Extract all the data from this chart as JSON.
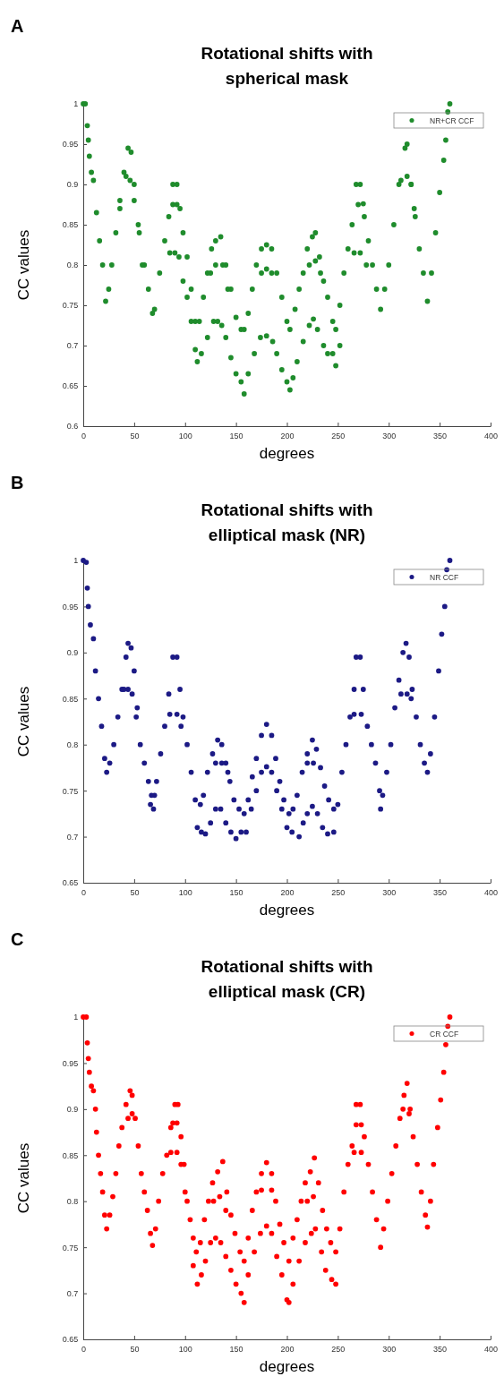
{
  "chart_data": [
    {
      "type": "scatter",
      "title": "Rotational shifts with spherical mask",
      "xlabel": "degrees",
      "ylabel": "CC values",
      "annotations": [
        "A"
      ],
      "xlim": [
        0,
        400
      ],
      "xticks": [
        0,
        50,
        100,
        150,
        200,
        250,
        300,
        350,
        400
      ],
      "ylim": [
        0.6,
        1
      ],
      "yticks": [
        0.6,
        0.65,
        0.7,
        0.75,
        0.8,
        0.85,
        0.9,
        0.95,
        1
      ],
      "legend": "top right",
      "marker": "circle",
      "grid": false,
      "x": [
        0,
        2,
        4,
        5,
        6,
        8,
        10,
        13,
        16,
        19,
        22,
        25,
        28,
        32,
        36,
        40,
        44,
        47,
        50,
        55,
        60,
        64,
        68,
        70,
        75,
        80,
        84,
        88,
        92,
        95,
        98,
        102,
        106,
        110,
        114,
        118,
        122,
        126,
        130,
        135,
        140,
        145,
        150,
        155,
        158,
        162,
        166,
        170,
        175,
        180,
        185,
        190,
        195,
        200,
        203,
        208,
        212,
        216,
        220,
        225,
        228,
        232,
        236,
        240,
        245,
        248,
        252,
        256,
        260,
        264,
        268,
        272,
        276,
        280,
        284,
        288,
        292,
        296,
        300,
        305,
        310,
        316,
        318,
        322,
        326,
        330,
        334,
        338,
        342,
        346,
        350,
        354,
        356,
        358,
        360,
        36,
        42,
        46,
        50,
        54,
        58,
        85,
        90,
        94,
        98,
        102,
        106,
        110,
        112,
        116,
        122,
        128,
        132,
        136,
        140,
        145,
        150,
        155,
        158,
        162,
        168,
        174,
        180,
        186,
        190,
        195,
        200,
        203,
        206,
        210,
        216,
        222,
        226,
        230,
        236,
        240,
        245,
        248,
        252,
        125,
        130,
        137,
        142,
        175,
        180,
        185,
        222,
        228,
        233,
        270,
        275,
        88,
        92,
        266,
        272,
        278,
        312,
        318,
        322,
        325
      ],
      "series": [
        {
          "name": "NR+CR CCF",
          "color": "#1f8c2c",
          "values": [
            1.0,
            1.0,
            0.973,
            0.955,
            0.935,
            0.915,
            0.905,
            0.865,
            0.83,
            0.8,
            0.755,
            0.77,
            0.8,
            0.84,
            0.88,
            0.915,
            0.945,
            0.94,
            0.9,
            0.84,
            0.8,
            0.77,
            0.74,
            0.745,
            0.79,
            0.83,
            0.86,
            0.9,
            0.9,
            0.87,
            0.84,
            0.81,
            0.77,
            0.73,
            0.73,
            0.76,
            0.79,
            0.82,
            0.83,
            0.835,
            0.8,
            0.77,
            0.735,
            0.72,
            0.72,
            0.74,
            0.77,
            0.8,
            0.82,
            0.825,
            0.82,
            0.79,
            0.76,
            0.73,
            0.72,
            0.745,
            0.77,
            0.79,
            0.82,
            0.835,
            0.84,
            0.81,
            0.78,
            0.76,
            0.73,
            0.72,
            0.75,
            0.79,
            0.82,
            0.85,
            0.9,
            0.9,
            0.86,
            0.83,
            0.8,
            0.77,
            0.745,
            0.77,
            0.8,
            0.85,
            0.9,
            0.945,
            0.95,
            0.9,
            0.86,
            0.82,
            0.79,
            0.755,
            0.79,
            0.84,
            0.89,
            0.93,
            0.955,
            0.99,
            1.0,
            0.87,
            0.91,
            0.905,
            0.88,
            0.85,
            0.8,
            0.815,
            0.815,
            0.81,
            0.78,
            0.76,
            0.73,
            0.695,
            0.68,
            0.69,
            0.71,
            0.73,
            0.73,
            0.725,
            0.71,
            0.685,
            0.665,
            0.655,
            0.64,
            0.665,
            0.69,
            0.71,
            0.712,
            0.705,
            0.69,
            0.67,
            0.655,
            0.645,
            0.66,
            0.68,
            0.705,
            0.725,
            0.733,
            0.72,
            0.7,
            0.69,
            0.69,
            0.675,
            0.7,
            0.79,
            0.8,
            0.8,
            0.77,
            0.79,
            0.795,
            0.79,
            0.8,
            0.805,
            0.79,
            0.875,
            0.876,
            0.875,
            0.875,
            0.815,
            0.815,
            0.8,
            0.905,
            0.91,
            0.9,
            0.87
          ]
        }
      ]
    },
    {
      "type": "scatter",
      "title": "Rotational shifts with elliptical mask (NR)",
      "xlabel": "degrees",
      "ylabel": "CC values",
      "annotations": [
        "B"
      ],
      "xlim": [
        0,
        400
      ],
      "xticks": [
        0,
        50,
        100,
        150,
        200,
        250,
        300,
        350,
        400
      ],
      "ylim": [
        0.65,
        1
      ],
      "yticks": [
        0.65,
        0.7,
        0.75,
        0.8,
        0.85,
        0.9,
        0.95,
        1
      ],
      "legend": "top right",
      "marker": "circle",
      "grid": false,
      "x": [
        0,
        3,
        4,
        5,
        7,
        10,
        12,
        15,
        18,
        21,
        23,
        26,
        30,
        34,
        38,
        42,
        44,
        47,
        50,
        53,
        56,
        60,
        64,
        67,
        70,
        72,
        76,
        80,
        84,
        88,
        92,
        95,
        98,
        102,
        106,
        110,
        115,
        118,
        122,
        127,
        132,
        136,
        140,
        144,
        148,
        153,
        158,
        162,
        166,
        170,
        175,
        180,
        185,
        189,
        193,
        197,
        202,
        206,
        210,
        215,
        220,
        225,
        229,
        233,
        237,
        241,
        246,
        250,
        254,
        258,
        262,
        266,
        268,
        272,
        275,
        279,
        283,
        287,
        291,
        294,
        298,
        302,
        306,
        310,
        314,
        317,
        320,
        323,
        327,
        331,
        335,
        338,
        341,
        345,
        349,
        352,
        355,
        357,
        360,
        40,
        44,
        48,
        52,
        66,
        69,
        85,
        92,
        96,
        112,
        116,
        120,
        125,
        130,
        135,
        140,
        145,
        150,
        155,
        160,
        165,
        170,
        175,
        180,
        185,
        190,
        195,
        200,
        205,
        212,
        216,
        220,
        225,
        230,
        235,
        240,
        246,
        266,
        273,
        292,
        312,
        318,
        322,
        130,
        136,
        142,
        220,
        226
      ],
      "series": [
        {
          "name": "NR CCF",
          "color": "#1c1a85",
          "values": [
            1.0,
            0.998,
            0.97,
            0.95,
            0.93,
            0.915,
            0.88,
            0.85,
            0.82,
            0.785,
            0.77,
            0.78,
            0.8,
            0.83,
            0.86,
            0.895,
            0.91,
            0.905,
            0.88,
            0.84,
            0.8,
            0.78,
            0.76,
            0.745,
            0.745,
            0.76,
            0.79,
            0.82,
            0.855,
            0.895,
            0.895,
            0.86,
            0.83,
            0.8,
            0.77,
            0.74,
            0.735,
            0.745,
            0.77,
            0.79,
            0.805,
            0.8,
            0.78,
            0.76,
            0.74,
            0.73,
            0.725,
            0.74,
            0.765,
            0.785,
            0.81,
            0.822,
            0.81,
            0.785,
            0.76,
            0.74,
            0.725,
            0.73,
            0.745,
            0.77,
            0.79,
            0.805,
            0.795,
            0.775,
            0.755,
            0.74,
            0.73,
            0.735,
            0.77,
            0.8,
            0.83,
            0.86,
            0.895,
            0.895,
            0.86,
            0.82,
            0.8,
            0.78,
            0.75,
            0.745,
            0.77,
            0.8,
            0.84,
            0.87,
            0.9,
            0.91,
            0.895,
            0.86,
            0.83,
            0.8,
            0.78,
            0.77,
            0.79,
            0.83,
            0.88,
            0.92,
            0.95,
            0.99,
            1.0,
            0.86,
            0.86,
            0.855,
            0.83,
            0.735,
            0.73,
            0.833,
            0.833,
            0.82,
            0.71,
            0.705,
            0.703,
            0.715,
            0.73,
            0.73,
            0.715,
            0.705,
            0.698,
            0.705,
            0.705,
            0.73,
            0.75,
            0.77,
            0.776,
            0.77,
            0.75,
            0.73,
            0.71,
            0.705,
            0.7,
            0.715,
            0.725,
            0.733,
            0.725,
            0.71,
            0.703,
            0.705,
            0.833,
            0.833,
            0.73,
            0.855,
            0.855,
            0.85,
            0.78,
            0.78,
            0.77,
            0.78,
            0.78
          ]
        }
      ]
    },
    {
      "type": "scatter",
      "title": "Rotational shifts with elliptical mask (CR)",
      "xlabel": "degrees",
      "ylabel": "CC values",
      "annotations": [
        "C"
      ],
      "xlim": [
        0,
        400
      ],
      "xticks": [
        0,
        50,
        100,
        150,
        200,
        250,
        300,
        350,
        400
      ],
      "ylim": [
        0.65,
        1
      ],
      "yticks": [
        0.65,
        0.7,
        0.75,
        0.8,
        0.85,
        0.9,
        0.95,
        1
      ],
      "legend": "top right",
      "marker": "circle",
      "grid": false,
      "x": [
        0,
        3,
        4,
        5,
        6,
        8,
        10,
        12,
        13,
        15,
        17,
        19,
        21,
        23,
        26,
        29,
        32,
        35,
        38,
        42,
        46,
        48,
        51,
        54,
        57,
        60,
        63,
        66,
        68,
        71,
        74,
        78,
        82,
        86,
        90,
        93,
        96,
        99,
        102,
        105,
        108,
        111,
        115,
        119,
        123,
        127,
        132,
        137,
        141,
        145,
        149,
        154,
        158,
        162,
        166,
        170,
        175,
        180,
        185,
        189,
        193,
        197,
        202,
        206,
        210,
        214,
        218,
        223,
        227,
        231,
        235,
        239,
        243,
        248,
        252,
        256,
        260,
        264,
        268,
        272,
        276,
        280,
        284,
        288,
        292,
        295,
        299,
        303,
        307,
        311,
        315,
        318,
        321,
        324,
        328,
        332,
        336,
        338,
        341,
        344,
        348,
        351,
        354,
        356,
        358,
        360,
        44,
        48,
        88,
        92,
        86,
        92,
        96,
        100,
        108,
        112,
        116,
        120,
        125,
        130,
        135,
        140,
        145,
        150,
        155,
        158,
        162,
        168,
        174,
        180,
        185,
        190,
        195,
        200,
        202,
        206,
        212,
        218,
        224,
        228,
        234,
        238,
        244,
        248,
        128,
        134,
        140,
        175,
        185,
        220,
        226,
        266,
        273,
        268,
        273,
        314,
        320
      ],
      "series": [
        {
          "name": "CR CCF",
          "color": "#ff0000",
          "values": [
            1.0,
            1.0,
            0.972,
            0.955,
            0.94,
            0.925,
            0.92,
            0.9,
            0.875,
            0.85,
            0.83,
            0.81,
            0.785,
            0.77,
            0.785,
            0.805,
            0.83,
            0.86,
            0.88,
            0.905,
            0.92,
            0.915,
            0.89,
            0.86,
            0.83,
            0.81,
            0.79,
            0.765,
            0.752,
            0.77,
            0.8,
            0.83,
            0.85,
            0.88,
            0.905,
            0.905,
            0.87,
            0.84,
            0.8,
            0.78,
            0.76,
            0.745,
            0.755,
            0.78,
            0.8,
            0.82,
            0.832,
            0.843,
            0.81,
            0.785,
            0.765,
            0.745,
            0.735,
            0.76,
            0.79,
            0.81,
            0.83,
            0.842,
            0.83,
            0.8,
            0.775,
            0.755,
            0.735,
            0.76,
            0.78,
            0.8,
            0.82,
            0.832,
            0.847,
            0.82,
            0.79,
            0.77,
            0.755,
            0.745,
            0.77,
            0.81,
            0.84,
            0.86,
            0.905,
            0.905,
            0.87,
            0.84,
            0.81,
            0.78,
            0.75,
            0.77,
            0.8,
            0.83,
            0.86,
            0.89,
            0.915,
            0.928,
            0.9,
            0.87,
            0.84,
            0.81,
            0.785,
            0.772,
            0.8,
            0.84,
            0.88,
            0.91,
            0.94,
            0.97,
            0.99,
            1.0,
            0.89,
            0.895,
            0.885,
            0.885,
            0.853,
            0.853,
            0.84,
            0.81,
            0.73,
            0.71,
            0.72,
            0.735,
            0.755,
            0.76,
            0.755,
            0.74,
            0.725,
            0.71,
            0.7,
            0.69,
            0.72,
            0.745,
            0.765,
            0.773,
            0.765,
            0.74,
            0.72,
            0.693,
            0.69,
            0.71,
            0.735,
            0.755,
            0.765,
            0.77,
            0.745,
            0.725,
            0.715,
            0.71,
            0.8,
            0.805,
            0.79,
            0.812,
            0.812,
            0.8,
            0.805,
            0.853,
            0.853,
            0.883,
            0.883,
            0.9,
            0.895
          ]
        }
      ]
    }
  ]
}
